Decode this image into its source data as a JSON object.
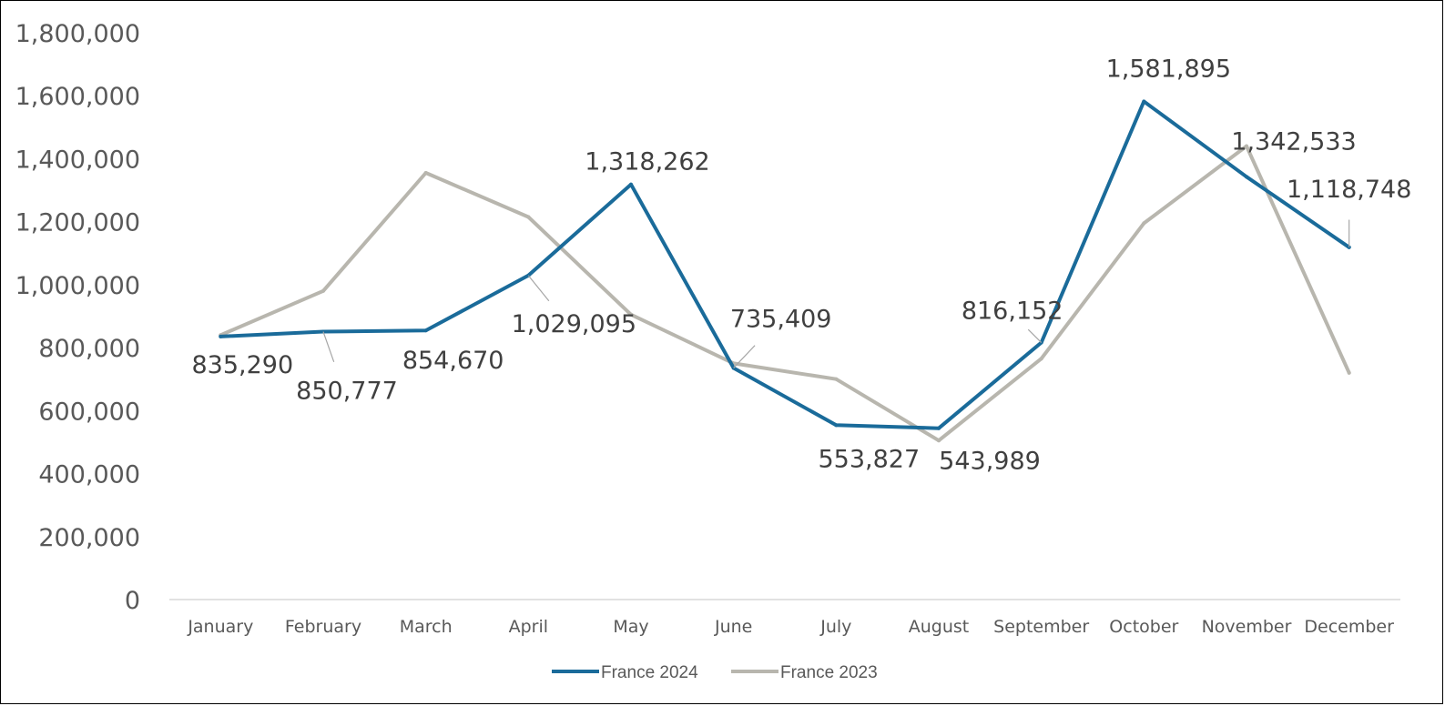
{
  "chart_data": {
    "type": "line",
    "categories": [
      "January",
      "February",
      "March",
      "April",
      "May",
      "June",
      "July",
      "August",
      "September",
      "October",
      "November",
      "December"
    ],
    "ylim": [
      0,
      1800000
    ],
    "y_ticks": [
      0,
      200000,
      400000,
      600000,
      800000,
      1000000,
      1200000,
      1400000,
      1600000,
      1800000
    ],
    "y_tick_labels": [
      "0",
      "200,000",
      "400,000",
      "600,000",
      "800,000",
      "1,000,000",
      "1,200,000",
      "1,400,000",
      "1,600,000",
      "1,800,000"
    ],
    "grid": false,
    "legend_position": "bottom",
    "series": [
      {
        "name": "France 2024",
        "color": "#1a6b9a",
        "values": [
          835290,
          850777,
          854670,
          1029095,
          1318262,
          735409,
          553827,
          543989,
          816152,
          1581895,
          1342533,
          1118748
        ],
        "labels": [
          "835,290",
          "850,777",
          "854,670",
          "1,029,095",
          "1,318,262",
          "735,409",
          "553,827",
          "543,989",
          "816,152",
          "1,581,895",
          "1,342,533",
          "1,118,748"
        ]
      },
      {
        "name": "France 2023",
        "color": "#b8b6ae",
        "values": [
          840000,
          980000,
          1355000,
          1215000,
          905000,
          750000,
          700000,
          505000,
          765000,
          1195000,
          1440000,
          720000
        ]
      }
    ]
  }
}
